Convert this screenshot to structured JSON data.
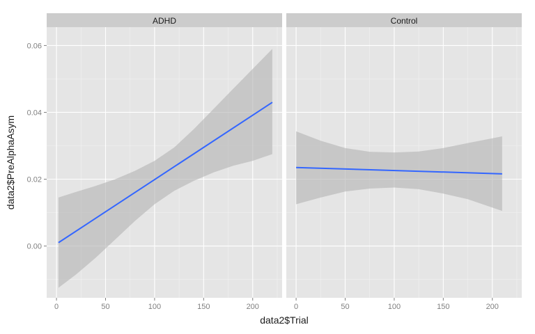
{
  "chart_data": {
    "type": "line",
    "xlabel": "data2$Trial",
    "ylabel": "data2$PreAlphaAsym",
    "xlim": [
      -10,
      230
    ],
    "ylim": [
      -0.0155,
      0.0655
    ],
    "x_ticks": [
      0,
      50,
      100,
      150,
      200
    ],
    "y_ticks": [
      0.0,
      0.02,
      0.04,
      0.06
    ],
    "y_tick_labels": [
      "0.00",
      "0.02",
      "0.04",
      "0.06"
    ],
    "grid": true,
    "colors": {
      "panel_bg": "#e5e5e5",
      "strip_bg": "#cccccc",
      "grid_major": "#ffffff",
      "grid_minor": "#f2f2f2",
      "line": "#3366ff",
      "ribbon": "#b3b3b3"
    },
    "panels": [
      {
        "label": "ADHD",
        "fit": {
          "x": [
            2,
            220
          ],
          "y": [
            0.001,
            0.043
          ]
        },
        "band_x": [
          2,
          20,
          40,
          60,
          80,
          100,
          120,
          140,
          160,
          180,
          200,
          220
        ],
        "band_lower": [
          -0.0125,
          -0.0085,
          -0.0035,
          0.002,
          0.0075,
          0.0125,
          0.0165,
          0.0195,
          0.022,
          0.024,
          0.0255,
          0.0275
        ],
        "band_upper": [
          0.0145,
          0.0162,
          0.018,
          0.02,
          0.0225,
          0.0255,
          0.0295,
          0.035,
          0.041,
          0.047,
          0.053,
          0.059
        ]
      },
      {
        "label": "Control",
        "fit": {
          "x": [
            0,
            210
          ],
          "y": [
            0.0235,
            0.0216
          ]
        },
        "band_x": [
          0,
          25,
          50,
          75,
          100,
          125,
          150,
          175,
          210
        ],
        "band_lower": [
          0.0125,
          0.0145,
          0.0163,
          0.0172,
          0.0175,
          0.017,
          0.0157,
          0.014,
          0.0105
        ],
        "band_upper": [
          0.0343,
          0.0315,
          0.0293,
          0.0282,
          0.028,
          0.0283,
          0.0293,
          0.0308,
          0.0328
        ]
      }
    ]
  }
}
